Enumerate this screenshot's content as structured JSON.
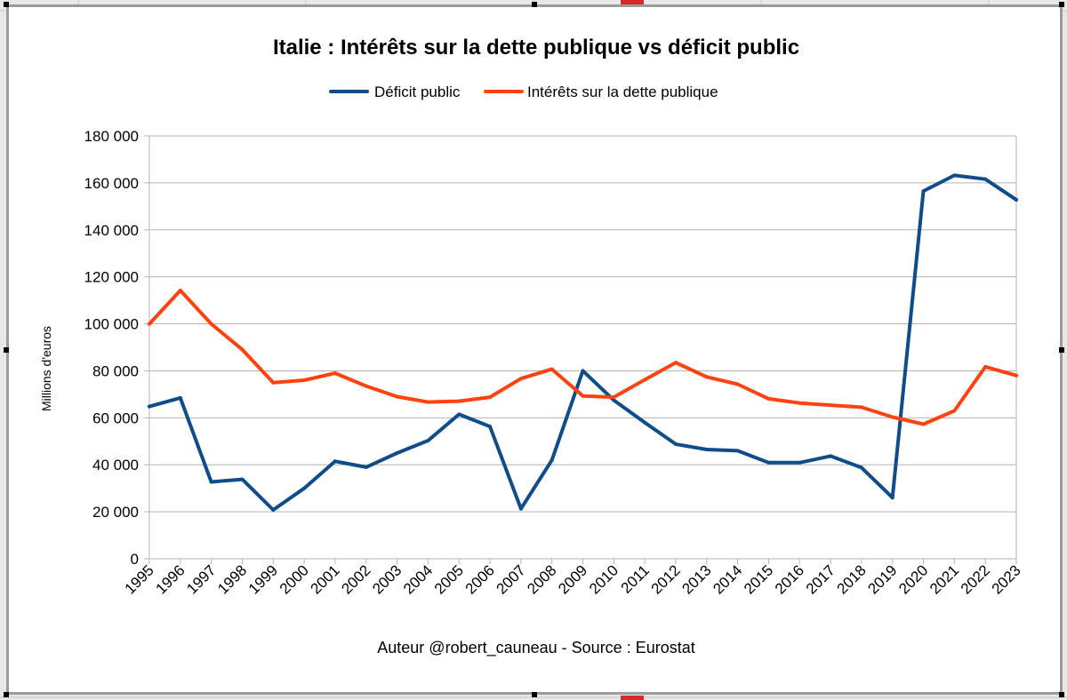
{
  "chart_data": {
    "type": "line",
    "title": "Italie : Intérêts sur la dette publique vs déficit public",
    "xlabel": "",
    "ylabel": "Millions d'euros",
    "footer": "Auteur @robert_cauneau - Source : Eurostat",
    "ylim": [
      0,
      180000
    ],
    "ytick_values": [
      0,
      20000,
      40000,
      60000,
      80000,
      100000,
      120000,
      140000,
      160000,
      180000
    ],
    "ytick_labels": [
      "0",
      "20 000",
      "40 000",
      "60 000",
      "80 000",
      "100 000",
      "120 000",
      "140 000",
      "160 000",
      "180 000"
    ],
    "grid": true,
    "legend_position": "top-center",
    "categories": [
      "1995",
      "1996",
      "1997",
      "1998",
      "1999",
      "2000",
      "2001",
      "2002",
      "2003",
      "2004",
      "2005",
      "2006",
      "2007",
      "2008",
      "2009",
      "2010",
      "2011",
      "2012",
      "2013",
      "2014",
      "2015",
      "2016",
      "2017",
      "2018",
      "2019",
      "2020",
      "2021",
      "2022",
      "2023"
    ],
    "series": [
      {
        "name": "Déficit public",
        "color": "#0f4c8a",
        "values": [
          64800,
          68500,
          32700,
          33800,
          20800,
          30000,
          41500,
          39000,
          45000,
          50300,
          61500,
          56300,
          21300,
          42000,
          80000,
          67500,
          58000,
          48800,
          46500,
          46000,
          40900,
          40900,
          43700,
          38800,
          26000,
          156500,
          163200,
          161600,
          152800
        ]
      },
      {
        "name": "Intérêts sur la dette publique",
        "color": "#ff420e",
        "values": [
          100000,
          114200,
          100000,
          89000,
          75000,
          76000,
          79000,
          73500,
          69000,
          66700,
          67100,
          68800,
          76700,
          80700,
          69300,
          68800,
          76200,
          83500,
          77400,
          74300,
          68100,
          66300,
          65400,
          64500,
          60300,
          57300,
          63000,
          81700,
          78000
        ]
      }
    ]
  }
}
